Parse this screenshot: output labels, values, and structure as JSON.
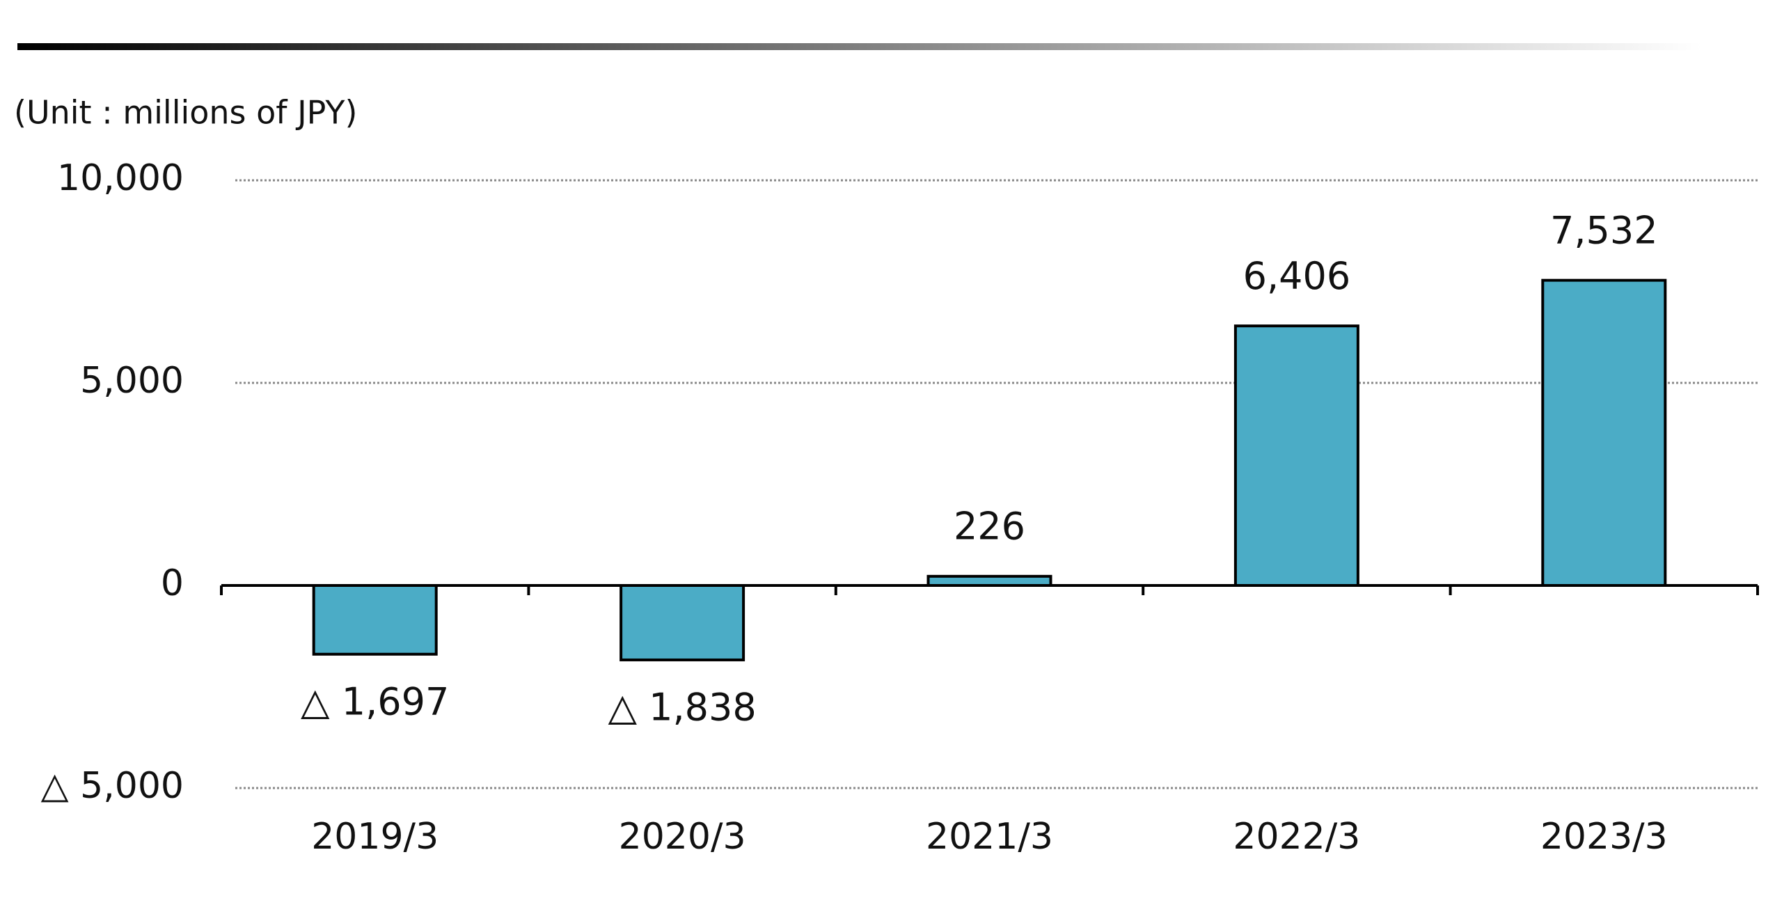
{
  "chart_data": {
    "type": "bar",
    "subtitle": "(Unit : millions of JPY)",
    "categories": [
      "2019/3",
      "2020/3",
      "2021/3",
      "2022/3",
      "2023/3"
    ],
    "values": [
      -1697,
      -1838,
      226,
      6406,
      7532
    ],
    "value_labels": [
      "△ 1,697",
      "△ 1,838",
      "226",
      "6,406",
      "7,532"
    ],
    "color": "#4bacc6",
    "ylim": [
      -5000,
      10000
    ],
    "yticks": [
      {
        "value": -5000,
        "label": "△ 5,000"
      },
      0,
      {
        "value": 5000,
        "label": "5,000"
      },
      {
        "value": 10000,
        "label": "10,000"
      }
    ],
    "grid": true
  }
}
